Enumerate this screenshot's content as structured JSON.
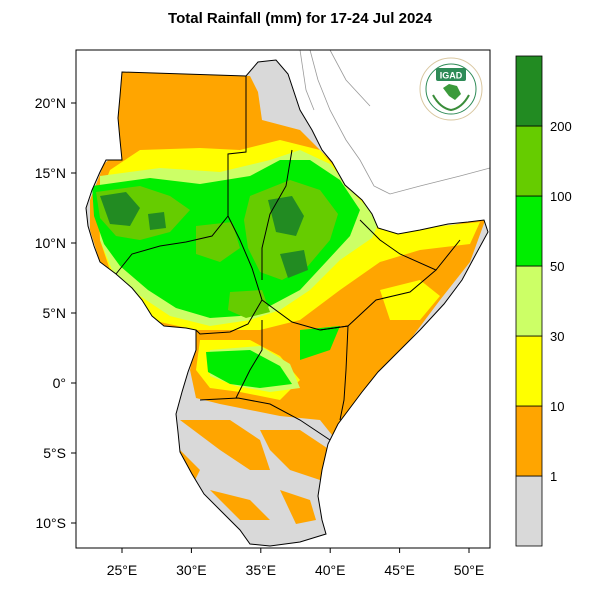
{
  "title": "Total Rainfall (mm) for 17-24 Jul 2024",
  "logo_text": "IGAD",
  "map": {
    "lon_range": [
      22,
      52
    ],
    "lat_range": [
      -12,
      24
    ],
    "lon_ticks": [
      "25°E",
      "30°E",
      "35°E",
      "40°E",
      "45°E",
      "50°E"
    ],
    "lat_ticks": [
      "20°N",
      "15°N",
      "10°N",
      "5°N",
      "0°",
      "5°S",
      "10°S"
    ],
    "land_color": "#d9d9d9",
    "water_color": "#ffffff"
  },
  "colorbar": {
    "labels": [
      "1",
      "10",
      "30",
      "50",
      "100",
      "200"
    ],
    "colors": [
      "#d9d9d9",
      "#ffa500",
      "#ffff00",
      "#ccff66",
      "#00ee00",
      "#66cc00",
      "#228b22"
    ]
  }
}
